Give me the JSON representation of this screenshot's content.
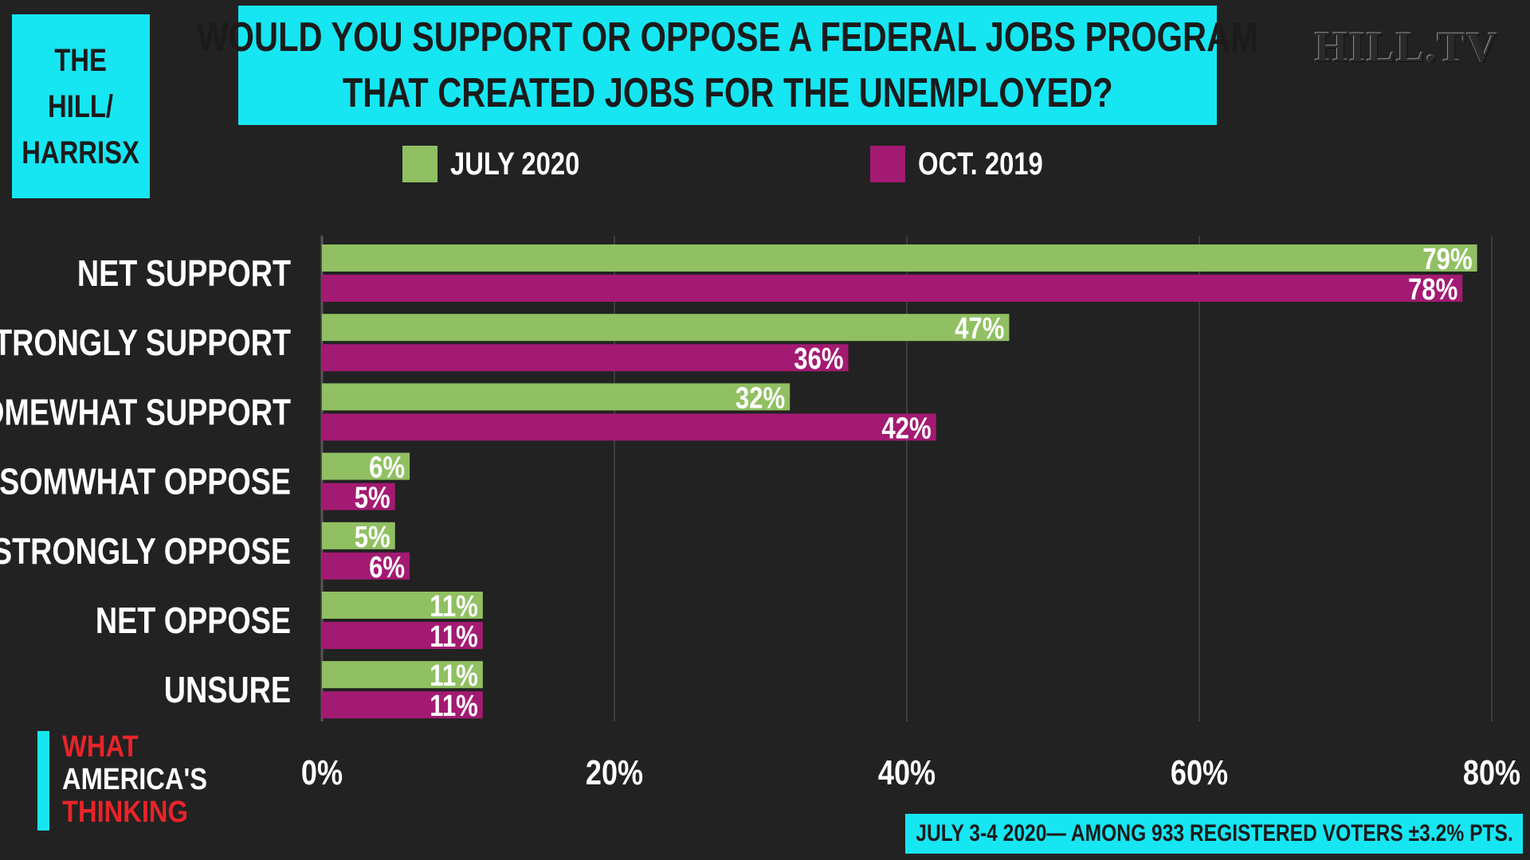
{
  "source_box": {
    "line1": "THE HILL/",
    "line2": "HARRISX"
  },
  "title": {
    "line1": "WOULD YOU SUPPORT OR OPPOSE A FEDERAL JOBS PROGRAM",
    "line2": "THAT CREATED JOBS FOR THE UNEMPLOYED?"
  },
  "brand": "HILL.TV",
  "logo": {
    "line1": "WHAT",
    "line2": "AMERICA'S",
    "line3": "THINKING"
  },
  "footnote": "JULY 3-4 2020— AMONG 933 REGISTERED VOTERS ±3.2% PTS.",
  "colors": {
    "background": "#222222",
    "accent_cyan": "#16e6f2",
    "july_2020": "#90c062",
    "oct_2019": "#a31a72",
    "logo_red": "#e8242a"
  },
  "chart_data": {
    "type": "bar",
    "orientation": "horizontal",
    "categories": [
      "NET SUPPORT",
      "STRONGLY SUPPORT",
      "SOMEWHAT SUPPORT",
      "SOMWHAT OPPOSE",
      "STRONGLY OPPOSE",
      "NET OPPOSE",
      "UNSURE"
    ],
    "series": [
      {
        "name": "JULY 2020",
        "color": "#90c062",
        "values": [
          79,
          47,
          32,
          6,
          5,
          11,
          11
        ],
        "labels": [
          "79%",
          "47%",
          "32%",
          "6%",
          "5%",
          "11%",
          "11%"
        ]
      },
      {
        "name": "OCT. 2019",
        "color": "#a31a72",
        "values": [
          78,
          36,
          42,
          5,
          6,
          11,
          11
        ],
        "labels": [
          "78%",
          "36%",
          "42%",
          "5%",
          "6%",
          "11%",
          "11%"
        ]
      }
    ],
    "xlim": [
      0,
      80
    ],
    "ticks": [
      0,
      20,
      40,
      60,
      80
    ],
    "tick_labels": [
      "0%",
      "20%",
      "40%",
      "60%",
      "80%"
    ],
    "grid": true,
    "legend_position": "top"
  }
}
